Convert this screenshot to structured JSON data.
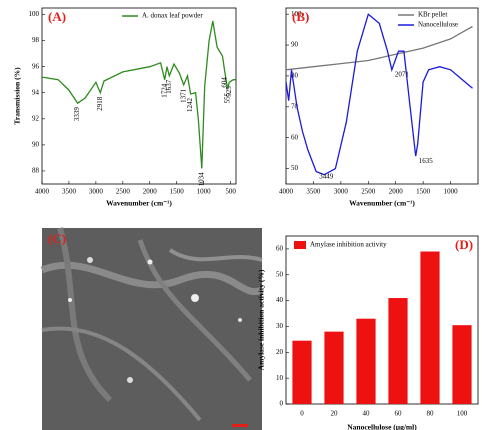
{
  "chart_data": [
    {
      "type": "line",
      "panel_label": "(A)",
      "x_label": "Wavenumber (cm⁻¹)",
      "y_label": "Transmission (%)",
      "xlim": [
        4000,
        400
      ],
      "ylim": [
        87,
        100.5
      ],
      "xticks": [
        4000,
        3500,
        3000,
        2500,
        2000,
        1500,
        1000,
        500
      ],
      "yticks": [
        88,
        90,
        92,
        94,
        96,
        98,
        100
      ],
      "series": [
        {
          "name": "A. donax leaf powder",
          "color": "#2e8b1e",
          "x": [
            4000,
            3700,
            3500,
            3339,
            3200,
            3000,
            2918,
            2850,
            2500,
            2000,
            1800,
            1724,
            1680,
            1637,
            1550,
            1450,
            1371,
            1300,
            1242,
            1150,
            1100,
            1034,
            980,
            900,
            831,
            750,
            650,
            604,
            555,
            525,
            450,
            400
          ],
          "values": [
            95.2,
            95.0,
            94.2,
            93.2,
            93.6,
            94.8,
            94.0,
            94.9,
            95.6,
            96.0,
            96.3,
            95.0,
            96.0,
            95.3,
            96.2,
            95.5,
            94.6,
            95.3,
            93.9,
            94.0,
            92.0,
            88.2,
            94.5,
            98.0,
            99.5,
            97.5,
            96.8,
            95.5,
            94.3,
            94.8,
            95.0,
            95.0
          ]
        }
      ],
      "annotations": [
        {
          "x": 3339,
          "y": 93.2
        },
        {
          "x": 2918,
          "y": 94.0
        },
        {
          "x": 1724,
          "y": 95.0
        },
        {
          "x": 1637,
          "y": 95.3
        },
        {
          "x": 1371,
          "y": 94.6
        },
        {
          "x": 1242,
          "y": 93.9
        },
        {
          "x": 1034,
          "y": 88.2
        },
        {
          "x": 831,
          "y": 99.5
        },
        {
          "x": 604,
          "y": 95.5
        },
        {
          "x": 555,
          "y": 94.3
        },
        {
          "x": 525,
          "y": 94.8
        }
      ]
    },
    {
      "type": "line",
      "panel_label": "(B)",
      "x_label": "Wavenumber (cm⁻¹)",
      "xlim": [
        4000,
        500
      ],
      "ylim": [
        45,
        102
      ],
      "xticks": [
        4000,
        3500,
        3000,
        2500,
        2000,
        1500,
        1000
      ],
      "yticks": [
        50,
        60,
        70,
        80,
        90,
        100
      ],
      "series": [
        {
          "name": "KBr pellet",
          "color": "#777777",
          "x": [
            4000,
            3500,
            3000,
            2500,
            2000,
            1500,
            1000,
            800,
            600
          ],
          "values": [
            82,
            83,
            84,
            85,
            87,
            89,
            92,
            94,
            96
          ]
        },
        {
          "name": "Nanocellulose",
          "color": "#1a1adf",
          "x": [
            4000,
            3950,
            3900,
            3800,
            3700,
            3600,
            3449,
            3300,
            3100,
            2900,
            2700,
            2500,
            2300,
            2150,
            2071,
            1950,
            1850,
            1750,
            1635,
            1600,
            1500,
            1400,
            1200,
            1000,
            800,
            600
          ],
          "values": [
            78,
            72,
            82,
            70,
            62,
            56,
            49,
            48,
            50,
            65,
            88,
            100,
            97,
            88,
            82,
            88,
            88,
            72,
            54,
            58,
            78,
            82,
            83,
            82,
            79,
            76
          ]
        }
      ],
      "annotations": [
        {
          "x": 3449,
          "y": 49
        },
        {
          "x": 2071,
          "y": 82
        },
        {
          "x": 1635,
          "y": 54
        }
      ]
    },
    {
      "type": "bar",
      "panel_label": "(D)",
      "x_label": "Nanocellulose (µg/ml)",
      "y_label": "Amylase inhibition activity (%)",
      "categories": [
        "0",
        "20",
        "40",
        "60",
        "80",
        "100"
      ],
      "ylim": [
        0,
        65
      ],
      "yticks": [
        0,
        10,
        20,
        30,
        40,
        50,
        60
      ],
      "series": [
        {
          "name": "Amylase inhibition activity",
          "color": "#ee1111",
          "values": [
            24.5,
            28,
            33,
            41,
            59,
            30.5
          ]
        }
      ]
    }
  ],
  "image_panel": {
    "label": "(C)"
  }
}
